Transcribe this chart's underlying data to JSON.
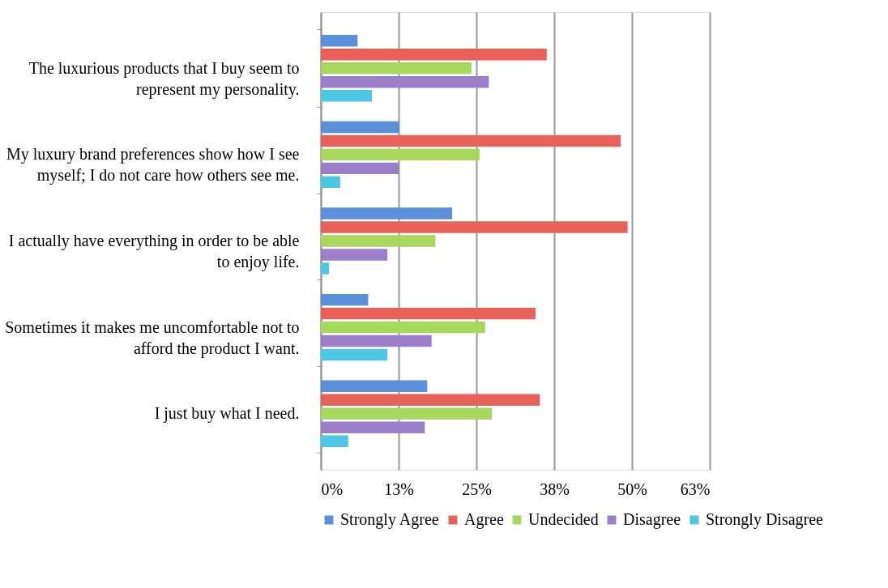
{
  "chart_data": {
    "type": "bar",
    "orientation": "horizontal",
    "categories": [
      "The luxurious products that I buy seem to represent my personality.",
      "My luxury brand preferences show how I see myself; I do not care how others see me.",
      "I actually have everything in order to be able to enjoy life.",
      "Sometimes it makes me uncomfortable not to afford the product I want.",
      "I just buy what I need."
    ],
    "series": [
      {
        "name": "Strongly Agree",
        "color": "#5b8fd9",
        "values": [
          5.9,
          12.6,
          21.1,
          7.6,
          17.1
        ]
      },
      {
        "name": "Agree",
        "color": "#e8625c",
        "values": [
          36.3,
          48.2,
          49.3,
          34.5,
          35.2
        ]
      },
      {
        "name": "Undecided",
        "color": "#a9d65c",
        "values": [
          24.2,
          25.5,
          18.4,
          26.4,
          27.5
        ]
      },
      {
        "name": "Disagree",
        "color": "#9b80c9",
        "values": [
          27.0,
          12.5,
          10.7,
          17.8,
          16.7
        ]
      },
      {
        "name": "Strongly Disagree",
        "color": "#4ec8e2",
        "values": [
          8.2,
          3.1,
          1.3,
          10.7,
          4.4
        ]
      }
    ],
    "xlim": [
      0,
      62.5
    ],
    "xticks": [
      {
        "value": 0,
        "label": "0%"
      },
      {
        "value": 12.5,
        "label": "13%"
      },
      {
        "value": 25,
        "label": "25%"
      },
      {
        "value": 37.5,
        "label": "38%"
      },
      {
        "value": 50,
        "label": "50%"
      },
      {
        "value": 62.5,
        "label": "63%"
      }
    ],
    "grid": "x",
    "legend": "bottom"
  }
}
